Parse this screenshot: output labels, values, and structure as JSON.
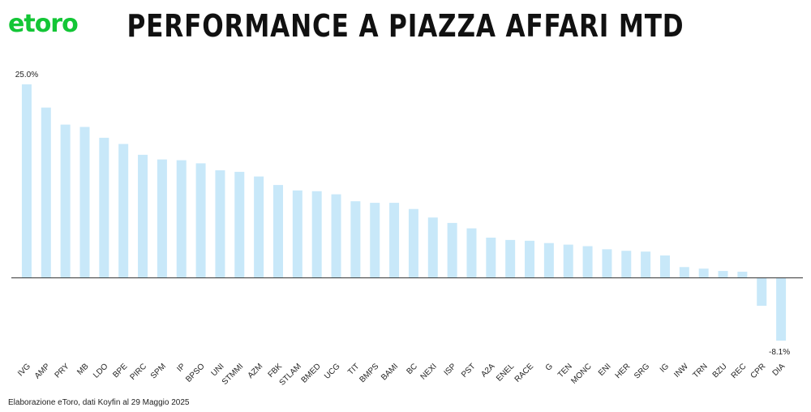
{
  "logo_text": "etoro",
  "title": "PERFORMANCE A PIAZZA AFFARI MTD",
  "footer": "Elaborazione eToro, dati Koyfin al 29 Maggio 2025",
  "colors": {
    "bar": "#c8e8f9",
    "axis": "#333333",
    "brand": "#13c636"
  },
  "chart_data": {
    "type": "bar",
    "title": "PERFORMANCE A PIAZZA AFFARI MTD",
    "xlabel": "",
    "ylabel": "",
    "ylim": [
      -8.1,
      25.0
    ],
    "grid": false,
    "categories": [
      "IVG",
      "AMP",
      "PRY",
      "MB",
      "LDO",
      "BPE",
      "PIRC",
      "SPM",
      "IP",
      "BPSO",
      "UNI",
      "STMMI",
      "AZM",
      "FBK",
      "STLAM",
      "BMED",
      "UCG",
      "TIT",
      "BMPS",
      "BAMI",
      "BC",
      "NEXI",
      "ISP",
      "PST",
      "A2A",
      "ENEL",
      "RACE",
      "G",
      "TEN",
      "MONC",
      "ENI",
      "HER",
      "SRG",
      "IG",
      "INW",
      "TRN",
      "BZU",
      "REC",
      "CPR",
      "DIA"
    ],
    "values": [
      25.0,
      22.0,
      19.8,
      19.5,
      18.1,
      17.3,
      15.9,
      15.3,
      15.2,
      14.8,
      13.9,
      13.7,
      13.1,
      12.0,
      11.3,
      11.2,
      10.8,
      9.9,
      9.7,
      9.7,
      8.9,
      7.8,
      7.1,
      6.4,
      5.2,
      4.9,
      4.8,
      4.5,
      4.3,
      4.1,
      3.7,
      3.5,
      3.4,
      2.9,
      1.4,
      1.2,
      0.9,
      0.8,
      -3.6,
      -8.1
    ],
    "data_labels": {
      "first": "25.0%",
      "last": "-8.1%"
    }
  }
}
